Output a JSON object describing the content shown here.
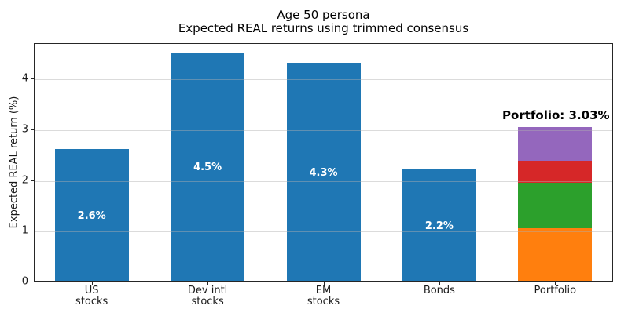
{
  "title": {
    "line1": "Age 50 persona",
    "line2": "Expected REAL returns using trimmed consensus"
  },
  "y_axis": {
    "label": "Expected REAL return (%)"
  },
  "chart_data": {
    "type": "bar",
    "title": "Age 50 persona\nExpected REAL returns using trimmed consensus",
    "ylabel": "Expected REAL return (%)",
    "xlabel": "",
    "ylim": [
      0,
      4.7
    ],
    "yticks": [
      0,
      1,
      2,
      3,
      4
    ],
    "grid": true,
    "categories": [
      "US\nstocks",
      "Dev intl\nstocks",
      "EM\nstocks",
      "Bonds",
      "Portfolio"
    ],
    "bar_color": "#1f77b4",
    "bars": [
      {
        "category": "US\nstocks",
        "value": 2.6,
        "label": "2.6%",
        "color": "#1f77b4"
      },
      {
        "category": "Dev intl\nstocks",
        "value": 4.5,
        "label": "4.5%",
        "color": "#1f77b4"
      },
      {
        "category": "EM\nstocks",
        "value": 4.3,
        "label": "4.3%",
        "color": "#1f77b4"
      },
      {
        "category": "Bonds",
        "value": 2.2,
        "label": "2.2%",
        "color": "#1f77b4"
      },
      {
        "category": "Portfolio",
        "total": 3.03,
        "annotation": "Portfolio: 3.03%",
        "stack": [
          {
            "value": 1.04,
            "color": "#ff7f0e"
          },
          {
            "value": 0.9,
            "color": "#2ca02c"
          },
          {
            "value": 0.43,
            "color": "#d62728"
          },
          {
            "value": 0.66,
            "color": "#9467bd"
          }
        ]
      }
    ]
  }
}
